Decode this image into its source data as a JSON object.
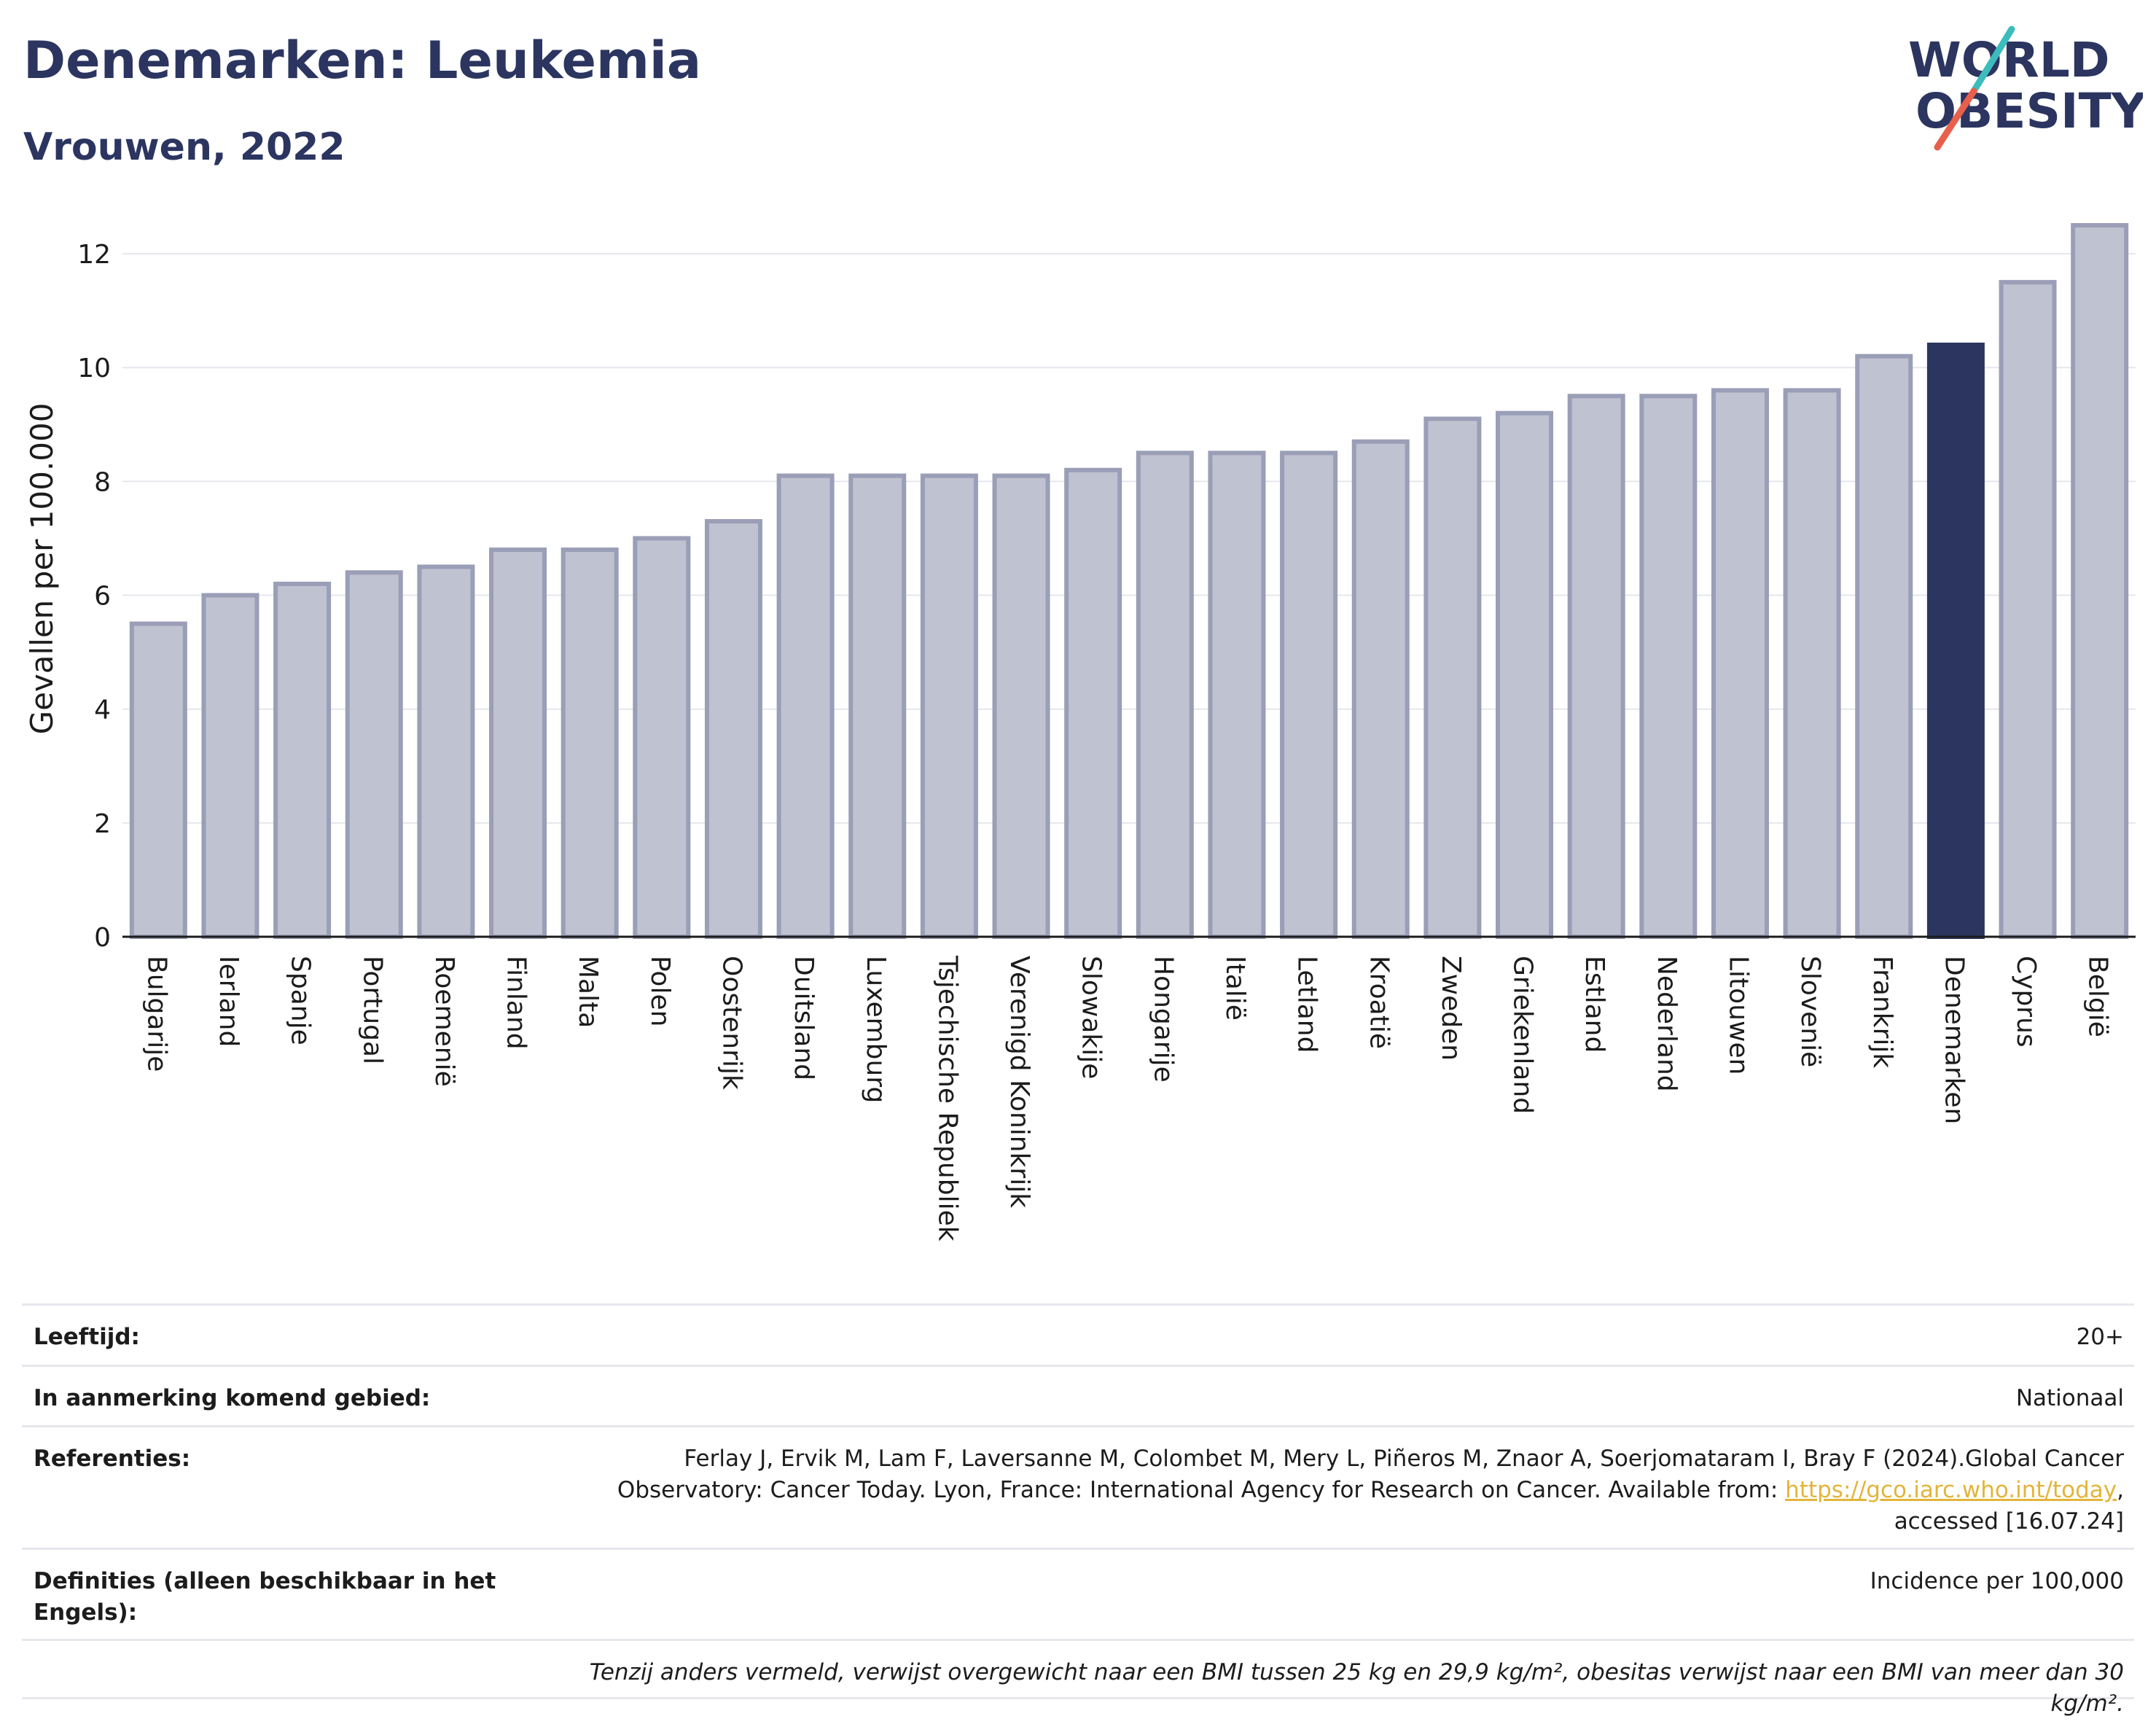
{
  "header": {
    "title": "Denemarken: Leukemia",
    "subtitle": "Vrouwen, 2022"
  },
  "logo": {
    "line1": "WORLD",
    "line2": "OBESITY",
    "colors": {
      "text": "#2b3560",
      "slash_teal": "#3cbcbc",
      "slash_red": "#e8604c"
    }
  },
  "chart_data": {
    "type": "bar",
    "ylabel": "Gevallen per 100.000",
    "ylim": [
      0,
      13
    ],
    "yticks": [
      0,
      2,
      4,
      6,
      8,
      10,
      12
    ],
    "grid": true,
    "highlight": "Denemarken",
    "colors": {
      "bar": "#bfc2d0",
      "bar_border": "#9a9eb6",
      "highlight": "#2b3560"
    },
    "categories": [
      "Bulgarije",
      "Ierland",
      "Spanje",
      "Portugal",
      "Roemenië",
      "Finland",
      "Malta",
      "Polen",
      "Oostenrijk",
      "Duitsland",
      "Luxemburg",
      "Tsjechische Republiek",
      "Verenigd Koninkrijk",
      "Slowakije",
      "Hongarije",
      "Italië",
      "Letland",
      "Kroatië",
      "Zweden",
      "Griekenland",
      "Estland",
      "Nederland",
      "Litouwen",
      "Slovenië",
      "Frankrijk",
      "Denemarken",
      "Cyprus",
      "België"
    ],
    "values": [
      5.5,
      6.0,
      6.2,
      6.4,
      6.5,
      6.8,
      6.8,
      7.0,
      7.3,
      8.1,
      8.1,
      8.1,
      8.1,
      8.2,
      8.5,
      8.5,
      8.5,
      8.7,
      9.1,
      9.2,
      9.5,
      9.5,
      9.6,
      9.6,
      10.2,
      10.4,
      11.5,
      12.5
    ]
  },
  "info": {
    "age_label": "Leeftijd:",
    "age_value": "20+",
    "area_label": "In aanmerking komend gebied:",
    "area_value": "Nationaal",
    "ref_label": "Referenties:",
    "ref_text_1": "Ferlay J, Ervik M, Lam F, Laversanne M, Colombet M, Mery L, Piñeros M, Znaor A, Soerjomataram I, Bray F (2024).Global Cancer Observatory: Cancer Today. Lyon, France: International Agency for Research on Cancer. Available from: ",
    "ref_link": "https://gco.iarc.who.int/today",
    "ref_text_2": ", accessed [16.07.24]",
    "def_label": "Definities (alleen beschikbaar in het Engels):",
    "def_value": "Incidence per 100,000",
    "note": "Tenzij anders vermeld, verwijst overgewicht naar een BMI tussen 25 kg en 29,9 kg/m², obesitas verwijst naar een BMI van meer dan 30 kg/m²."
  }
}
